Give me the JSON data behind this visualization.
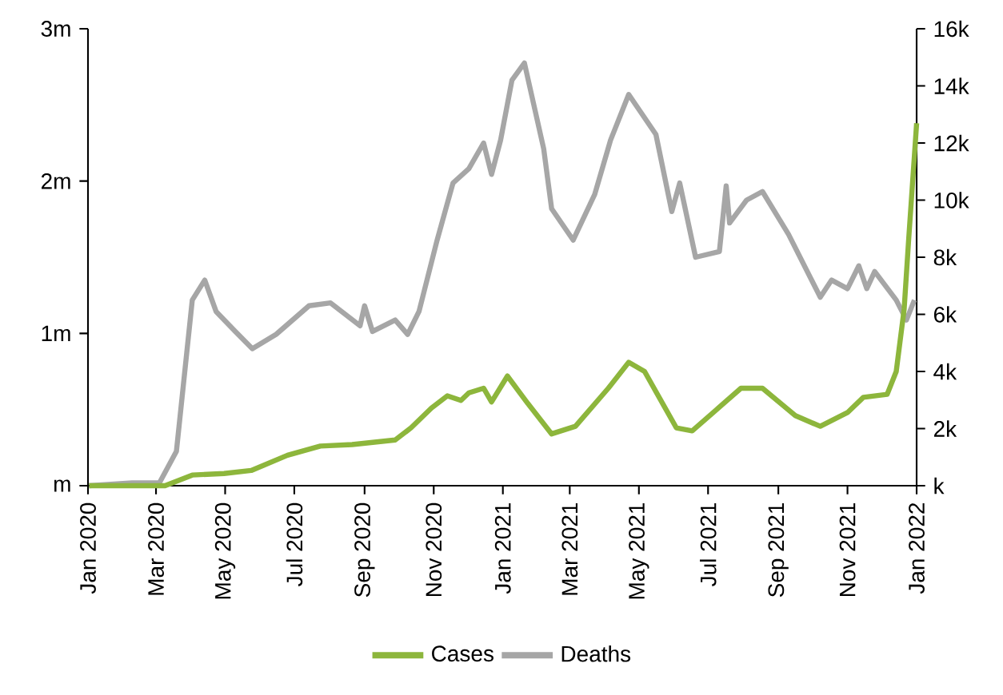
{
  "chart_data": {
    "type": "line",
    "legend": "bottom",
    "xlim": [
      "2020-01-01",
      "2022-01-01"
    ],
    "xticks": [
      {
        "value": "2020-01-01",
        "label": "Jan 2020"
      },
      {
        "value": "2020-03-01",
        "label": "Mar 2020"
      },
      {
        "value": "2020-05-01",
        "label": "May 2020"
      },
      {
        "value": "2020-07-01",
        "label": "Jul 2020"
      },
      {
        "value": "2020-09-01",
        "label": "Sep 2020"
      },
      {
        "value": "2020-11-01",
        "label": "Nov 2020"
      },
      {
        "value": "2021-01-01",
        "label": "Jan 2021"
      },
      {
        "value": "2021-03-01",
        "label": "Mar 2021"
      },
      {
        "value": "2021-05-01",
        "label": "May 2021"
      },
      {
        "value": "2021-07-01",
        "label": "Jul 2021"
      },
      {
        "value": "2021-09-01",
        "label": "Sep 2021"
      },
      {
        "value": "2021-11-01",
        "label": "Nov 2021"
      },
      {
        "value": "2022-01-01",
        "label": "Jan 2022"
      }
    ],
    "ylim": [
      0,
      3000000
    ],
    "yticks": [
      {
        "value": 0,
        "label": "m"
      },
      {
        "value": 1000000,
        "label": "1m"
      },
      {
        "value": 2000000,
        "label": "2m"
      },
      {
        "value": 3000000,
        "label": "3m"
      }
    ],
    "y2lim": [
      0,
      16000
    ],
    "y2ticks": [
      {
        "value": 0,
        "label": "k"
      },
      {
        "value": 2000,
        "label": "2k"
      },
      {
        "value": 4000,
        "label": "4k"
      },
      {
        "value": 6000,
        "label": "6k"
      },
      {
        "value": 8000,
        "label": "8k"
      },
      {
        "value": 10000,
        "label": "10k"
      },
      {
        "value": 12000,
        "label": "12k"
      },
      {
        "value": 14000,
        "label": "14k"
      },
      {
        "value": 16000,
        "label": "16k"
      }
    ],
    "series": [
      {
        "name": "Cases",
        "color": "#8db63c",
        "x": [
          "2020-01-02",
          "2020-03-09",
          "2020-04-02",
          "2020-04-30",
          "2020-05-24",
          "2020-06-25",
          "2020-07-24",
          "2020-08-21",
          "2020-09-28",
          "2020-10-12",
          "2020-10-30",
          "2020-11-13",
          "2020-11-25",
          "2020-12-02",
          "2020-12-15",
          "2020-12-22",
          "2021-01-05",
          "2021-01-23",
          "2021-02-13",
          "2021-03-06",
          "2021-04-04",
          "2021-04-22",
          "2021-05-06",
          "2021-06-03",
          "2021-06-17",
          "2021-07-07",
          "2021-07-30",
          "2021-08-18",
          "2021-09-16",
          "2021-10-08",
          "2021-11-01",
          "2021-11-15",
          "2021-12-06",
          "2021-12-14",
          "2021-12-21",
          "2021-12-25",
          "2022-01-01"
        ],
        "values": [
          0,
          0,
          70000,
          80000,
          100000,
          200000,
          260000,
          270000,
          300000,
          380000,
          510000,
          590000,
          560000,
          610000,
          640000,
          550000,
          720000,
          540000,
          340000,
          390000,
          640000,
          810000,
          750000,
          380000,
          360000,
          490000,
          640000,
          640000,
          460000,
          390000,
          480000,
          580000,
          600000,
          750000,
          1160000,
          1620000,
          2380000
        ]
      },
      {
        "name": "Deaths",
        "color": "#a6a6a6",
        "axis": "y2",
        "x": [
          "2020-01-02",
          "2020-02-09",
          "2020-03-04",
          "2020-03-19",
          "2020-04-02",
          "2020-04-13",
          "2020-04-23",
          "2020-05-10",
          "2020-05-25",
          "2020-06-15",
          "2020-07-14",
          "2020-08-02",
          "2020-08-28",
          "2020-09-01",
          "2020-09-08",
          "2020-09-28",
          "2020-10-09",
          "2020-10-19",
          "2020-11-04",
          "2020-11-18",
          "2020-12-02",
          "2020-12-15",
          "2020-12-22",
          "2020-12-30",
          "2021-01-09",
          "2021-01-20",
          "2021-02-06",
          "2021-02-13",
          "2021-03-04",
          "2021-03-23",
          "2021-04-06",
          "2021-04-22",
          "2021-05-16",
          "2021-05-30",
          "2021-06-06",
          "2021-06-20",
          "2021-07-11",
          "2021-07-17",
          "2021-07-20",
          "2021-08-04",
          "2021-08-18",
          "2021-09-10",
          "2021-10-08",
          "2021-10-18",
          "2021-11-01",
          "2021-11-11",
          "2021-11-18",
          "2021-11-25",
          "2021-12-14",
          "2021-12-23",
          "2021-12-30"
        ],
        "values": [
          0,
          100,
          100,
          1200,
          6500,
          7200,
          6100,
          5400,
          4800,
          5300,
          6300,
          6400,
          5600,
          6300,
          5400,
          5800,
          5300,
          6100,
          8600,
          10600,
          11100,
          12000,
          10900,
          12100,
          14200,
          14800,
          11800,
          9700,
          8600,
          10200,
          12100,
          13700,
          12300,
          9600,
          10600,
          8000,
          8200,
          10500,
          9200,
          10000,
          10300,
          8800,
          6600,
          7200,
          6900,
          7700,
          6900,
          7500,
          6500,
          5800,
          6500
        ]
      }
    ]
  }
}
